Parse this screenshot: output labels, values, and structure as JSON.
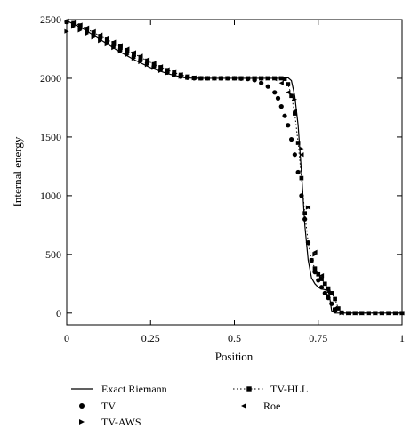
{
  "chart_data": {
    "type": "line",
    "xlabel": "Position",
    "ylabel": "Internal energy",
    "xlim": [
      0,
      1
    ],
    "ylim": [
      -100,
      2500
    ],
    "xticks": [
      0,
      0.25,
      0.5,
      0.75,
      1
    ],
    "xtick_labels": [
      "0",
      "0.25",
      "0.5",
      "0.75",
      "1"
    ],
    "yticks": [
      0,
      500,
      1000,
      1500,
      2000,
      2500
    ],
    "ytick_labels": [
      "0",
      "500",
      "1000",
      "1500",
      "2000",
      "2500"
    ],
    "grid": false,
    "legend_position": "bottom",
    "series": [
      {
        "name": "Exact Riemann",
        "style": "solid-line",
        "x": [
          0,
          0.05,
          0.1,
          0.15,
          0.2,
          0.25,
          0.3,
          0.35,
          0.38,
          0.45,
          0.55,
          0.65,
          0.66,
          0.67,
          0.68,
          0.69,
          0.7,
          0.71,
          0.72,
          0.73,
          0.74,
          0.75,
          0.76,
          0.77,
          0.78,
          0.785,
          0.79,
          0.8,
          0.85,
          1.0
        ],
        "y": [
          2490,
          2420,
          2330,
          2240,
          2160,
          2090,
          2040,
          2005,
          2000,
          2000,
          2000,
          2000,
          2005,
          1980,
          1850,
          1600,
          1200,
          750,
          450,
          300,
          250,
          220,
          205,
          200,
          190,
          120,
          20,
          0,
          0,
          0
        ]
      },
      {
        "name": "TV",
        "style": "circle",
        "x": [
          0.0,
          0.02,
          0.04,
          0.06,
          0.08,
          0.1,
          0.12,
          0.14,
          0.16,
          0.18,
          0.2,
          0.22,
          0.24,
          0.26,
          0.28,
          0.3,
          0.32,
          0.34,
          0.36,
          0.38,
          0.4,
          0.42,
          0.44,
          0.46,
          0.48,
          0.5,
          0.52,
          0.54,
          0.56,
          0.58,
          0.6,
          0.62,
          0.63,
          0.64,
          0.65,
          0.66,
          0.67,
          0.68,
          0.69,
          0.7,
          0.71,
          0.72,
          0.73,
          0.74,
          0.75,
          0.76,
          0.77,
          0.78,
          0.79,
          0.8
        ],
        "y": [
          2480,
          2460,
          2430,
          2400,
          2370,
          2340,
          2310,
          2280,
          2250,
          2220,
          2190,
          2160,
          2130,
          2100,
          2075,
          2050,
          2030,
          2015,
          2005,
          2000,
          2000,
          2000,
          2000,
          2000,
          2000,
          2000,
          1998,
          1995,
          1985,
          1960,
          1930,
          1880,
          1830,
          1760,
          1680,
          1600,
          1480,
          1350,
          1200,
          1000,
          800,
          600,
          450,
          350,
          280,
          220,
          170,
          130,
          80,
          20
        ]
      },
      {
        "name": "TV-AWS",
        "style": "triangle-right",
        "x": [
          0.0,
          0.02,
          0.04,
          0.06,
          0.08,
          0.1,
          0.12,
          0.14,
          0.16,
          0.18,
          0.2,
          0.22,
          0.24,
          0.26,
          0.28,
          0.3,
          0.32,
          0.34,
          0.36,
          0.38,
          0.4,
          0.42,
          0.44,
          0.46,
          0.48,
          0.5,
          0.52,
          0.54,
          0.56,
          0.58,
          0.6,
          0.62,
          0.64,
          0.66,
          0.68,
          0.7,
          0.72,
          0.74,
          0.76,
          0.78,
          0.8,
          0.82,
          0.84,
          0.86,
          0.88,
          0.9,
          0.92,
          0.94,
          0.96,
          0.98,
          1.0
        ],
        "y": [
          2400,
          2440,
          2410,
          2380,
          2350,
          2320,
          2290,
          2260,
          2230,
          2200,
          2170,
          2140,
          2115,
          2090,
          2065,
          2045,
          2028,
          2015,
          2006,
          2002,
          2000,
          2000,
          2000,
          2000,
          2000,
          2000,
          2000,
          2000,
          2000,
          2000,
          2000,
          2000,
          2000,
          1950,
          1820,
          1400,
          900,
          500,
          300,
          150,
          30,
          0,
          0,
          0,
          0,
          0,
          0,
          0,
          0,
          0,
          0
        ]
      },
      {
        "name": "TV-HLL",
        "style": "dotted-square",
        "x": [
          0.0,
          0.02,
          0.04,
          0.06,
          0.08,
          0.1,
          0.12,
          0.14,
          0.16,
          0.18,
          0.2,
          0.22,
          0.24,
          0.26,
          0.28,
          0.3,
          0.32,
          0.34,
          0.36,
          0.38,
          0.4,
          0.42,
          0.44,
          0.46,
          0.48,
          0.5,
          0.52,
          0.54,
          0.56,
          0.58,
          0.6,
          0.62,
          0.64,
          0.65,
          0.66,
          0.67,
          0.68,
          0.69,
          0.7,
          0.71,
          0.72,
          0.73,
          0.74,
          0.75,
          0.76,
          0.77,
          0.78,
          0.79,
          0.8,
          0.81,
          0.82,
          0.84,
          0.86,
          0.88,
          0.9,
          0.92,
          0.94,
          0.96,
          0.98,
          1.0
        ],
        "y": [
          2480,
          2470,
          2450,
          2420,
          2390,
          2360,
          2330,
          2300,
          2270,
          2240,
          2210,
          2180,
          2150,
          2120,
          2095,
          2070,
          2050,
          2030,
          2015,
          2005,
          2000,
          2000,
          2000,
          2000,
          2000,
          2000,
          2000,
          2000,
          2000,
          2000,
          2000,
          2000,
          2000,
          1995,
          1950,
          1850,
          1700,
          1450,
          1150,
          850,
          600,
          450,
          380,
          330,
          290,
          250,
          210,
          170,
          120,
          40,
          5,
          0,
          0,
          0,
          0,
          0,
          0,
          0,
          0,
          0
        ]
      },
      {
        "name": "Roe",
        "style": "triangle-left",
        "x": [
          0.0,
          0.02,
          0.04,
          0.06,
          0.08,
          0.1,
          0.12,
          0.14,
          0.16,
          0.18,
          0.2,
          0.22,
          0.24,
          0.26,
          0.28,
          0.3,
          0.32,
          0.34,
          0.36,
          0.38,
          0.4,
          0.42,
          0.44,
          0.46,
          0.48,
          0.5,
          0.52,
          0.54,
          0.56,
          0.58,
          0.6,
          0.62,
          0.64,
          0.66,
          0.68,
          0.7,
          0.72,
          0.74,
          0.76,
          0.78,
          0.8,
          0.82,
          0.84,
          0.86,
          0.88,
          0.9,
          0.92,
          0.94,
          0.96,
          0.98,
          1.0
        ],
        "y": [
          2490,
          2475,
          2455,
          2430,
          2400,
          2370,
          2340,
          2310,
          2280,
          2250,
          2220,
          2190,
          2160,
          2130,
          2100,
          2075,
          2052,
          2032,
          2016,
          2006,
          2001,
          2000,
          2000,
          2000,
          2000,
          2000,
          2000,
          2000,
          2000,
          2000,
          2000,
          1995,
          1960,
          1880,
          1720,
          1350,
          900,
          520,
          320,
          180,
          40,
          0,
          0,
          0,
          0,
          0,
          0,
          0,
          0,
          0,
          0
        ]
      }
    ]
  }
}
